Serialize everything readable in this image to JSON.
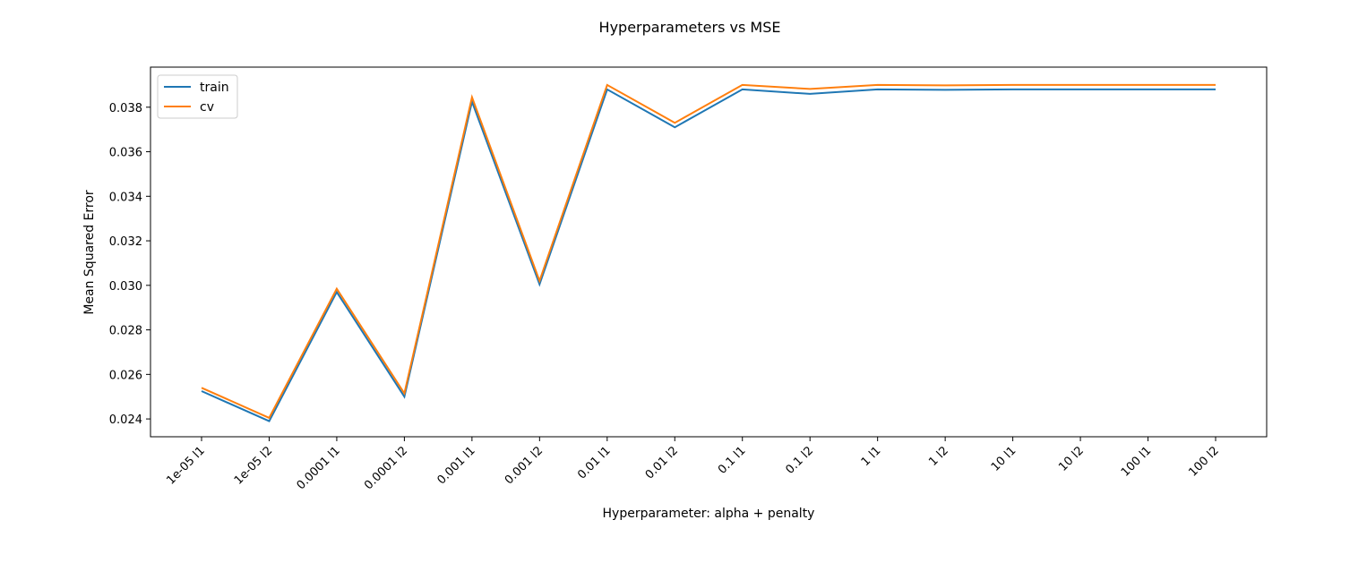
{
  "chart_data": {
    "type": "line",
    "title": "Hyperparameters vs MSE",
    "xlabel": "Hyperparameter: alpha + penalty",
    "ylabel": "Mean Squared Error",
    "categories": [
      "1e-05 l1",
      "1e-05 l2",
      "0.0001 l1",
      "0.0001 l2",
      "0.001 l1",
      "0.001 l2",
      "0.01 l1",
      "0.01 l2",
      "0.1 l1",
      "0.1 l2",
      "1 l1",
      "1 l2",
      "10 l1",
      "10 l2",
      "100 l1",
      "100 l2"
    ],
    "yticks": [
      "0.024",
      "0.026",
      "0.028",
      "0.030",
      "0.032",
      "0.034",
      "0.036",
      "0.038"
    ],
    "ylim": [
      0.0232,
      0.0398
    ],
    "grid": false,
    "legend_position": "top-left",
    "series": [
      {
        "name": "train",
        "color": "#1f77b4",
        "values": [
          0.02525,
          0.0239,
          0.0297,
          0.025,
          0.03825,
          0.03005,
          0.0388,
          0.0371,
          0.0388,
          0.0386,
          0.0388,
          0.03878,
          0.0388,
          0.0388,
          0.0388,
          0.0388
        ]
      },
      {
        "name": "cv",
        "color": "#ff7f0e",
        "values": [
          0.0254,
          0.02405,
          0.02985,
          0.02515,
          0.03845,
          0.0302,
          0.039,
          0.0373,
          0.039,
          0.03882,
          0.039,
          0.03898,
          0.039,
          0.039,
          0.039,
          0.039
        ]
      }
    ]
  }
}
